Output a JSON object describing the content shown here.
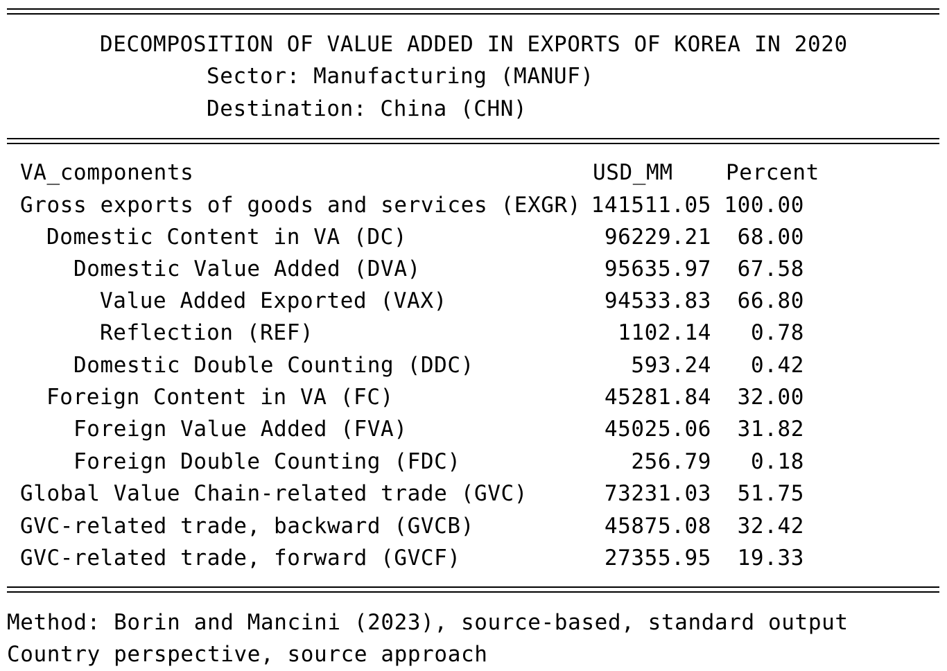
{
  "header": {
    "title": "DECOMPOSITION OF VALUE ADDED IN EXPORTS OF KOREA IN 2020",
    "sector": "Sector: Manufacturing (MANUF)",
    "destination": "Destination: China (CHN)"
  },
  "table": {
    "columns": {
      "label": "VA_components",
      "usd": "USD_MM",
      "percent": "Percent"
    },
    "rows": [
      {
        "label": "Gross exports of goods and services (EXGR)",
        "usd": "141511.05",
        "percent": "100.00"
      },
      {
        "label": "Domestic Content in VA (DC)",
        "usd": "96229.21",
        "percent": "68.00"
      },
      {
        "label": "Domestic Value Added (DVA)",
        "usd": "95635.97",
        "percent": "67.58"
      },
      {
        "label": "Value Added Exported (VAX)",
        "usd": "94533.83",
        "percent": "66.80"
      },
      {
        "label": "Reflection (REF)",
        "usd": "1102.14",
        "percent": "0.78"
      },
      {
        "label": "Domestic Double Counting (DDC)",
        "usd": "593.24",
        "percent": "0.42"
      },
      {
        "label": "Foreign Content in VA (FC)",
        "usd": "45281.84",
        "percent": "32.00"
      },
      {
        "label": "Foreign Value Added (FVA)",
        "usd": "45025.06",
        "percent": "31.82"
      },
      {
        "label": "Foreign Double Counting (FDC)",
        "usd": "256.79",
        "percent": "0.18"
      },
      {
        "label": "Global Value Chain-related trade (GVC)",
        "usd": "73231.03",
        "percent": "51.75"
      },
      {
        "label": "GVC-related trade, backward (GVCB)",
        "usd": "45875.08",
        "percent": "32.42"
      },
      {
        "label": "GVC-related trade, forward (GVCF)",
        "usd": "27355.95",
        "percent": "19.33"
      }
    ]
  },
  "footer": {
    "method": "Method: Borin and Mancini (2023), source-based, standard output",
    "perspective": "Country perspective, source approach"
  }
}
